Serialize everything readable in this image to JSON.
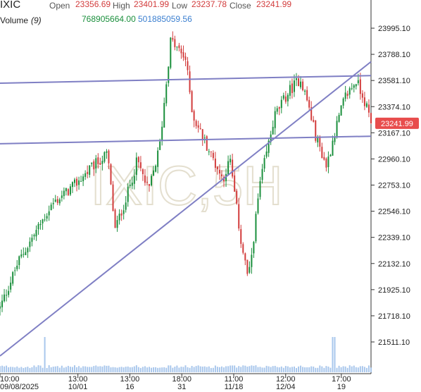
{
  "header": {
    "symbol": "IXIC",
    "open_label": "Open",
    "open_value": "23356.69",
    "high_label": "High",
    "high_value": "23401.99",
    "low_label": "Low",
    "low_value": "23237.78",
    "close_label": "Close",
    "close_value": "23241.99",
    "volume_label": "Volume",
    "volume_period": "(9)",
    "volume_value_1": "768905664.00",
    "volume_value_2": "501885059.56"
  },
  "colors": {
    "up": "#1a8f3c",
    "down": "#d23c3c",
    "trendline": "#7f7fc4",
    "volume": "#a9c7ec",
    "last_price_tag": "#e84d4d"
  },
  "chart_data": {
    "type": "candlestick",
    "watermark": "IXIC,5H",
    "y_axis": {
      "ticks": [
        21511.1,
        21718.1,
        21925.1,
        22132.1,
        22339.1,
        22546.1,
        22753.1,
        22960.1,
        23167.1,
        23374.1,
        23581.1,
        23788.1,
        23995.1
      ],
      "tick_labels": [
        "21511.10",
        "21718.10",
        "21925.10",
        "22132.10",
        "22339.10",
        "22546.10",
        "22753.10",
        "22960.10",
        "23167.10",
        "23374.10",
        "23581.10",
        "23788.10",
        "23995.10"
      ],
      "range": [
        21400,
        24060
      ]
    },
    "last_price": 23241.99,
    "last_price_label": "23241.99",
    "x_axis": [
      {
        "time": "10:00",
        "date": "09/08/2025",
        "pos": 0.0
      },
      {
        "time": "13:00",
        "date": "10/01",
        "pos": 0.21
      },
      {
        "time": "13:00",
        "date": "16",
        "pos": 0.35
      },
      {
        "time": "18:00",
        "date": "31",
        "pos": 0.49
      },
      {
        "time": "11:00",
        "date": "11/18",
        "pos": 0.63
      },
      {
        "time": "12:00",
        "date": "12/04",
        "pos": 0.77
      },
      {
        "time": "17:00",
        "date": "19",
        "pos": 0.92
      }
    ],
    "anchors": [
      [
        0.0,
        21780
      ],
      [
        0.05,
        22150
      ],
      [
        0.1,
        22400
      ],
      [
        0.14,
        22600
      ],
      [
        0.2,
        22750
      ],
      [
        0.25,
        22900
      ],
      [
        0.29,
        23000
      ],
      [
        0.31,
        22400
      ],
      [
        0.34,
        22650
      ],
      [
        0.37,
        22950
      ],
      [
        0.4,
        22700
      ],
      [
        0.43,
        23050
      ],
      [
        0.46,
        23900
      ],
      [
        0.5,
        23750
      ],
      [
        0.52,
        23300
      ],
      [
        0.56,
        23050
      ],
      [
        0.6,
        22800
      ],
      [
        0.62,
        22950
      ],
      [
        0.65,
        22300
      ],
      [
        0.67,
        22000
      ],
      [
        0.7,
        22750
      ],
      [
        0.74,
        23300
      ],
      [
        0.78,
        23500
      ],
      [
        0.81,
        23600
      ],
      [
        0.83,
        23400
      ],
      [
        0.85,
        23150
      ],
      [
        0.88,
        22900
      ],
      [
        0.9,
        23150
      ],
      [
        0.93,
        23450
      ],
      [
        0.96,
        23580
      ],
      [
        0.98,
        23450
      ],
      [
        1.0,
        23242
      ]
    ],
    "trendlines": [
      {
        "start": [
          0.0,
          23560
        ],
        "end": [
          1.0,
          23620
        ]
      },
      {
        "start": [
          0.0,
          23080
        ],
        "end": [
          1.0,
          23140
        ]
      },
      {
        "start": [
          0.0,
          21400
        ],
        "end": [
          1.0,
          23730
        ]
      }
    ],
    "volume_spikes": [
      0.12,
      0.9
    ],
    "grid": false
  }
}
